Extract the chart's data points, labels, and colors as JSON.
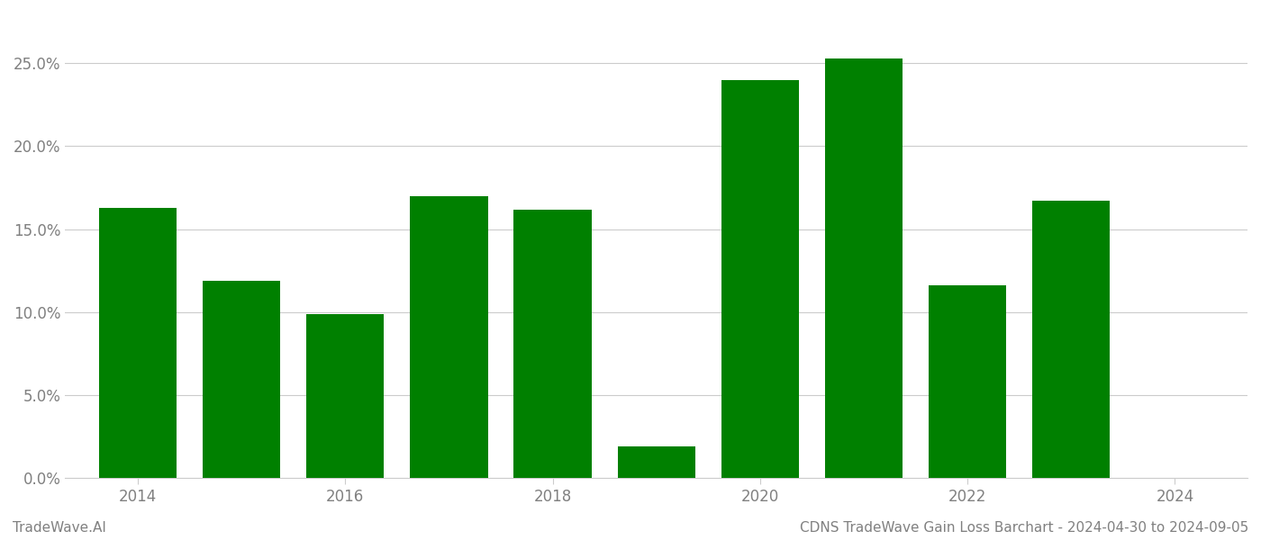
{
  "years": [
    2014,
    2015,
    2016,
    2017,
    2018,
    2019,
    2020,
    2021,
    2022,
    2023,
    2024
  ],
  "values": [
    0.163,
    0.119,
    0.099,
    0.17,
    0.162,
    0.019,
    0.24,
    0.253,
    0.116,
    0.167,
    0.0
  ],
  "bar_color": "#008000",
  "background_color": "#ffffff",
  "grid_color": "#cccccc",
  "ylabel_color": "#808080",
  "xlabel_color": "#808080",
  "ylim": [
    0,
    0.28
  ],
  "yticks": [
    0.0,
    0.05,
    0.1,
    0.15,
    0.2,
    0.25
  ],
  "xtick_labels": [
    "2014",
    "2016",
    "2018",
    "2020",
    "2022",
    "2024"
  ],
  "footer_left": "TradeWave.AI",
  "footer_right": "CDNS TradeWave Gain Loss Barchart - 2024-04-30 to 2024-09-05",
  "footer_color": "#808080",
  "footer_fontsize": 11,
  "bar_width": 0.75,
  "figsize": [
    14.0,
    6.0
  ],
  "dpi": 100
}
